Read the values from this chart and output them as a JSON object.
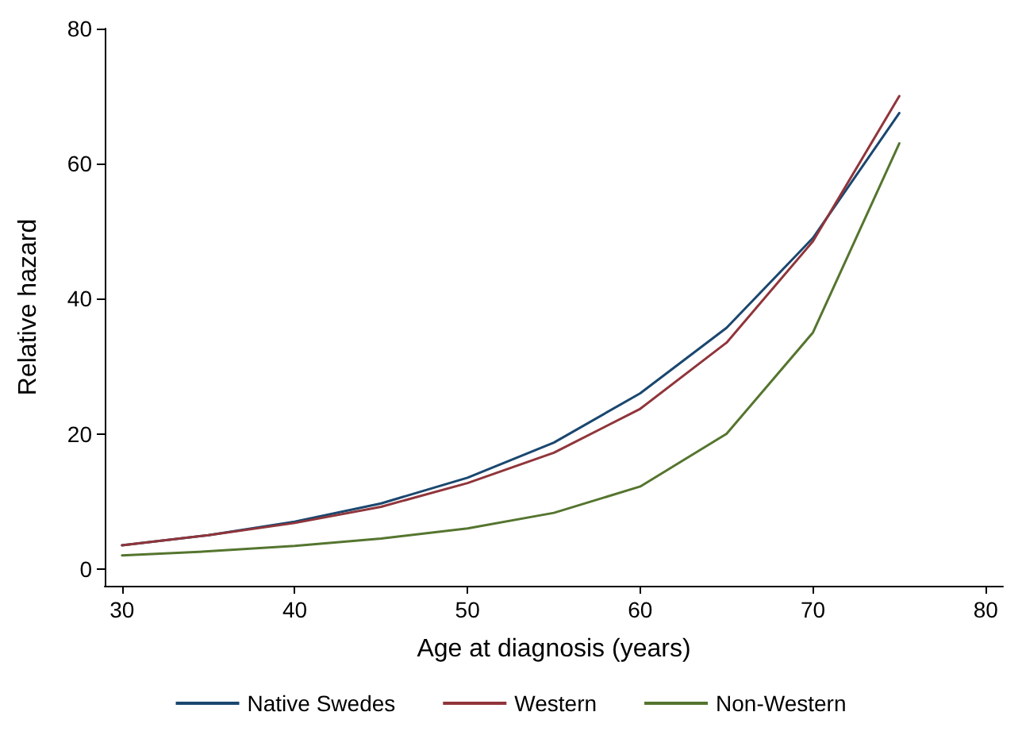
{
  "chart_data": {
    "type": "line",
    "xlabel": "Age at diagnosis (years)",
    "ylabel": "Relative hazard",
    "x": [
      30,
      35,
      40,
      45,
      50,
      55,
      60,
      65,
      70,
      75
    ],
    "series": [
      {
        "name": "Native Swedes",
        "color": "#1a476f",
        "values": [
          3.5,
          5,
          7,
          9.7,
          13.5,
          18.7,
          26,
          35.7,
          49,
          67.5
        ]
      },
      {
        "name": "Western",
        "color": "#90353b",
        "values": [
          3.5,
          5,
          6.8,
          9.2,
          12.7,
          17.2,
          23.7,
          33.5,
          48.5,
          70
        ]
      },
      {
        "name": "Non-Western",
        "color": "#55752f",
        "values": [
          2,
          2.6,
          3.4,
          4.5,
          6,
          8.3,
          12.2,
          20,
          35,
          63
        ]
      }
    ],
    "xlim": [
      29,
      81
    ],
    "xticks": [
      30,
      40,
      50,
      60,
      70,
      80
    ],
    "ylim": [
      -2.5,
      80
    ],
    "yticks": [
      0,
      20,
      40,
      60,
      80
    ],
    "grid": false,
    "legend": "bottom",
    "marker": "none",
    "line_style": "solid"
  }
}
